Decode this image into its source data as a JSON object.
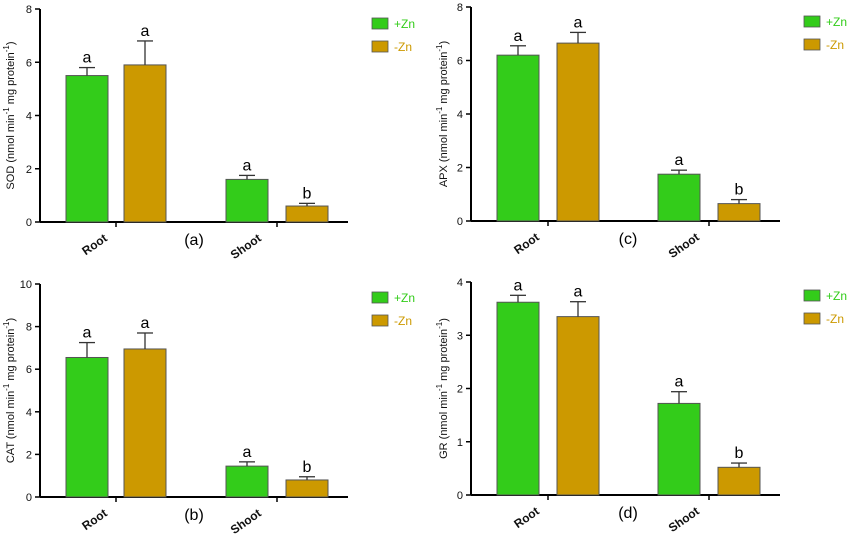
{
  "colors": {
    "plus_zn": "#33cc1a",
    "minus_zn": "#cc9900",
    "axis": "#000000",
    "border": "#555555"
  },
  "chart_data": [
    {
      "type": "bar",
      "panel_label": "(a)",
      "ylabel_main": "SOD (nmol min",
      "ylabel_sup1": "-1",
      "ylabel_mid": " mg protein",
      "ylabel_sup2": "-1",
      "ylabel_end": ")",
      "ylim": [
        0,
        8
      ],
      "yticks": [
        "0",
        "2",
        "4",
        "6",
        "8"
      ],
      "categories": [
        "Root",
        "Shoot"
      ],
      "series": [
        {
          "name": "+Zn",
          "values": [
            5.5,
            1.6
          ],
          "errors": [
            0.3,
            0.15
          ],
          "letters": [
            "a",
            "a"
          ]
        },
        {
          "name": "-Zn",
          "values": [
            5.9,
            0.6
          ],
          "errors": [
            0.9,
            0.1
          ],
          "letters": [
            "a",
            "b"
          ]
        }
      ],
      "legend_position": "top-right",
      "grid": false
    },
    {
      "type": "bar",
      "panel_label": "(c)",
      "ylabel_main": "APX (nmol min",
      "ylabel_sup1": "-1",
      "ylabel_mid": " mg protein",
      "ylabel_sup2": "-1",
      "ylabel_end": ")",
      "ylim": [
        0,
        8
      ],
      "yticks": [
        "0",
        "2",
        "4",
        "6",
        "8"
      ],
      "categories": [
        "Root",
        "Shoot"
      ],
      "series": [
        {
          "name": "+Zn",
          "values": [
            6.2,
            1.75
          ],
          "errors": [
            0.35,
            0.15
          ],
          "letters": [
            "a",
            "a"
          ]
        },
        {
          "name": "-Zn",
          "values": [
            6.65,
            0.65
          ],
          "errors": [
            0.4,
            0.15
          ],
          "letters": [
            "a",
            "b"
          ]
        }
      ],
      "legend_position": "top-right",
      "grid": false
    },
    {
      "type": "bar",
      "panel_label": "(b)",
      "ylabel_main": "CAT (nmol min",
      "ylabel_sup1": "-1",
      "ylabel_mid": " mg protein",
      "ylabel_sup2": "-1",
      "ylabel_end": ")",
      "ylim": [
        0,
        10
      ],
      "yticks": [
        "0",
        "2",
        "4",
        "6",
        "8",
        "10"
      ],
      "categories": [
        "Root",
        "Shoot"
      ],
      "series": [
        {
          "name": "+Zn",
          "values": [
            6.55,
            1.45
          ],
          "errors": [
            0.7,
            0.2
          ],
          "letters": [
            "a",
            "a"
          ]
        },
        {
          "name": "-Zn",
          "values": [
            6.95,
            0.8
          ],
          "errors": [
            0.75,
            0.15
          ],
          "letters": [
            "a",
            "b"
          ]
        }
      ],
      "legend_position": "top-right",
      "grid": false
    },
    {
      "type": "bar",
      "panel_label": "(d)",
      "ylabel_main": "GR (nmol min",
      "ylabel_sup1": "-1",
      "ylabel_mid": " mg protein",
      "ylabel_sup2": "-1",
      "ylabel_end": ")",
      "ylim": [
        0,
        4
      ],
      "yticks": [
        "0",
        "1",
        "2",
        "3",
        "4"
      ],
      "categories": [
        "Root",
        "Shoot"
      ],
      "series": [
        {
          "name": "+Zn",
          "values": [
            3.62,
            1.72
          ],
          "errors": [
            0.13,
            0.22
          ],
          "letters": [
            "a",
            "a"
          ]
        },
        {
          "name": "-Zn",
          "values": [
            3.35,
            0.52
          ],
          "errors": [
            0.28,
            0.08
          ],
          "letters": [
            "a",
            "b"
          ]
        }
      ],
      "legend_position": "top-right",
      "grid": false
    }
  ]
}
